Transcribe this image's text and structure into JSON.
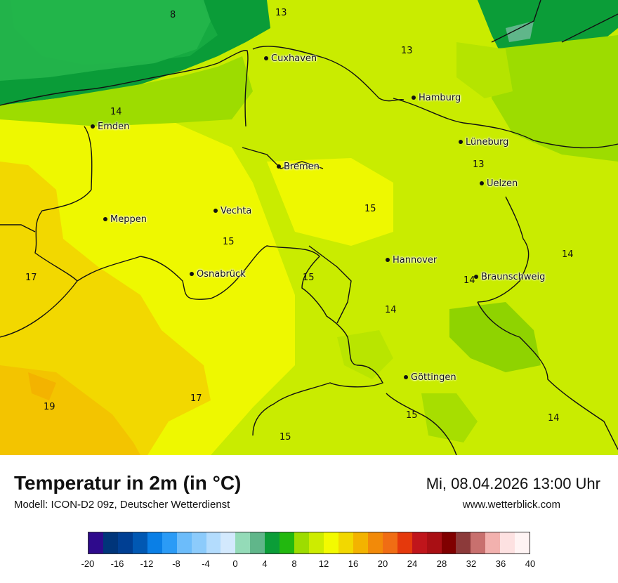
{
  "title": "Temperatur in 2m (in °C)",
  "subtitle": "Modell: ICON-D2 09z, Deutscher Wetterdienst",
  "datetime": "Mi, 08.04.2026 13:00 Uhr",
  "website": "www.wetterblick.com",
  "cities": [
    {
      "name": "Cuxhaven"
    },
    {
      "name": "Hamburg"
    },
    {
      "name": "Emden"
    },
    {
      "name": "Lüneburg"
    },
    {
      "name": "Bremen"
    },
    {
      "name": "Uelzen"
    },
    {
      "name": "Vechta"
    },
    {
      "name": "Meppen"
    },
    {
      "name": "Hannover"
    },
    {
      "name": "Osnabrück"
    },
    {
      "name": "Braunschweig"
    },
    {
      "name": "Göttingen"
    }
  ],
  "temperature_labels": [
    "8",
    "13",
    "13",
    "14",
    "13",
    "15",
    "15",
    "14",
    "17",
    "15",
    "14",
    "14",
    "17",
    "19",
    "15",
    "14",
    "15"
  ],
  "legend": {
    "ticks": [
      "-20",
      "-16",
      "-12",
      "-8",
      "-4",
      "0",
      "4",
      "8",
      "12",
      "16",
      "20",
      "24",
      "28",
      "32",
      "36",
      "40"
    ],
    "colors": [
      "#2e0a8c",
      "#00357a",
      "#003f93",
      "#0158b3",
      "#0a7fe6",
      "#2b9bf6",
      "#6cbcfa",
      "#8ccbfb",
      "#b3dcfd",
      "#d3e9fd",
      "#94dbb8",
      "#60b68a",
      "#0b9d38",
      "#22b80f",
      "#9ddc00",
      "#cdec00",
      "#f3fa00",
      "#f2d800",
      "#f3b300",
      "#f28a09",
      "#f06d14",
      "#e5390c",
      "#c0151b",
      "#a90f14",
      "#800000",
      "#8c3a3a",
      "#c8706e",
      "#f2b1ae",
      "#fde1e1",
      "#fff4f4"
    ]
  }
}
